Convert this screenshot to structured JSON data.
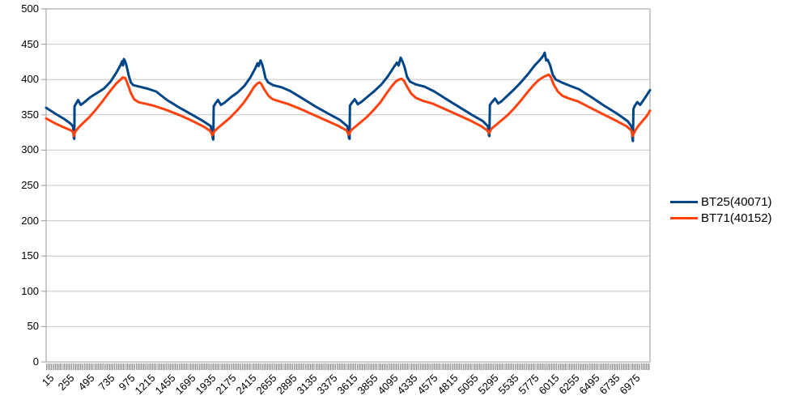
{
  "chart_data": {
    "type": "line",
    "title": "",
    "grid": "horizontal",
    "legend_position": "right",
    "x_axis": {
      "min": 15,
      "max": 7185,
      "minor_tick_step": 15,
      "tick_labels": [
        15,
        255,
        495,
        735,
        975,
        1215,
        1455,
        1695,
        1935,
        2175,
        2415,
        2655,
        2895,
        3135,
        3375,
        3615,
        3855,
        4095,
        4335,
        4575,
        4815,
        5055,
        5295,
        5535,
        5775,
        6015,
        6255,
        6495,
        6735,
        6975
      ]
    },
    "y_axis": {
      "min": 0,
      "max": 500,
      "tick_step": 50,
      "tick_labels": [
        0,
        50,
        100,
        150,
        200,
        250,
        300,
        350,
        400,
        450,
        500
      ]
    },
    "series": [
      {
        "name": "BT25(40071)",
        "color": "#004586",
        "points": [
          [
            15,
            360
          ],
          [
            120,
            352
          ],
          [
            230,
            344
          ],
          [
            310,
            337
          ],
          [
            335,
            333
          ],
          [
            345,
            317
          ],
          [
            349,
            316
          ],
          [
            352,
            362
          ],
          [
            372,
            366
          ],
          [
            395,
            371
          ],
          [
            425,
            364
          ],
          [
            460,
            367
          ],
          [
            540,
            375
          ],
          [
            620,
            381
          ],
          [
            700,
            387
          ],
          [
            780,
            397
          ],
          [
            850,
            410
          ],
          [
            900,
            421
          ],
          [
            918,
            426
          ],
          [
            928,
            420
          ],
          [
            938,
            429
          ],
          [
            952,
            426
          ],
          [
            970,
            419
          ],
          [
            995,
            406
          ],
          [
            1020,
            396
          ],
          [
            1050,
            392
          ],
          [
            1120,
            390
          ],
          [
            1220,
            387
          ],
          [
            1320,
            383
          ],
          [
            1450,
            371
          ],
          [
            1600,
            360
          ],
          [
            1750,
            350
          ],
          [
            1880,
            341
          ],
          [
            1970,
            334
          ],
          [
            1995,
            316
          ],
          [
            2000,
            315
          ],
          [
            2005,
            362
          ],
          [
            2025,
            366
          ],
          [
            2055,
            371
          ],
          [
            2090,
            364
          ],
          [
            2130,
            367
          ],
          [
            2210,
            375
          ],
          [
            2290,
            382
          ],
          [
            2370,
            391
          ],
          [
            2440,
            403
          ],
          [
            2495,
            415
          ],
          [
            2525,
            423
          ],
          [
            2538,
            419
          ],
          [
            2560,
            427
          ],
          [
            2575,
            423
          ],
          [
            2595,
            415
          ],
          [
            2620,
            402
          ],
          [
            2650,
            396
          ],
          [
            2710,
            392
          ],
          [
            2810,
            389
          ],
          [
            2910,
            384
          ],
          [
            3060,
            373
          ],
          [
            3210,
            362
          ],
          [
            3360,
            352
          ],
          [
            3500,
            343
          ],
          [
            3590,
            334
          ],
          [
            3612,
            317
          ],
          [
            3618,
            316
          ],
          [
            3622,
            363
          ],
          [
            3645,
            367
          ],
          [
            3680,
            372
          ],
          [
            3715,
            365
          ],
          [
            3755,
            368
          ],
          [
            3835,
            376
          ],
          [
            3915,
            384
          ],
          [
            3995,
            393
          ],
          [
            4070,
            404
          ],
          [
            4135,
            416
          ],
          [
            4180,
            424
          ],
          [
            4200,
            420
          ],
          [
            4225,
            431
          ],
          [
            4245,
            426
          ],
          [
            4270,
            418
          ],
          [
            4300,
            404
          ],
          [
            4335,
            397
          ],
          [
            4405,
            393
          ],
          [
            4505,
            390
          ],
          [
            4625,
            383
          ],
          [
            4770,
            372
          ],
          [
            4920,
            361
          ],
          [
            5070,
            350
          ],
          [
            5200,
            341
          ],
          [
            5260,
            334
          ],
          [
            5272,
            321
          ],
          [
            5278,
            320
          ],
          [
            5284,
            364
          ],
          [
            5308,
            368
          ],
          [
            5345,
            373
          ],
          [
            5382,
            366
          ],
          [
            5420,
            369
          ],
          [
            5500,
            378
          ],
          [
            5580,
            387
          ],
          [
            5660,
            397
          ],
          [
            5745,
            409
          ],
          [
            5815,
            420
          ],
          [
            5880,
            428
          ],
          [
            5912,
            433
          ],
          [
            5935,
            438
          ],
          [
            5952,
            427
          ],
          [
            5970,
            428
          ],
          [
            6000,
            420
          ],
          [
            6030,
            407
          ],
          [
            6065,
            400
          ],
          [
            6135,
            396
          ],
          [
            6235,
            391
          ],
          [
            6345,
            386
          ],
          [
            6490,
            375
          ],
          [
            6640,
            363
          ],
          [
            6790,
            352
          ],
          [
            6920,
            341
          ],
          [
            6968,
            333
          ],
          [
            6978,
            314
          ],
          [
            6982,
            313
          ],
          [
            6988,
            358
          ],
          [
            7005,
            363
          ],
          [
            7035,
            368
          ],
          [
            7068,
            364
          ],
          [
            7120,
            373
          ],
          [
            7185,
            385
          ]
        ]
      },
      {
        "name": "BT71(40152)",
        "color": "#FF420E",
        "points": [
          [
            15,
            345
          ],
          [
            120,
            338
          ],
          [
            230,
            332
          ],
          [
            310,
            328
          ],
          [
            332,
            326
          ],
          [
            343,
            320
          ],
          [
            360,
            326
          ],
          [
            400,
            332
          ],
          [
            450,
            338
          ],
          [
            530,
            347
          ],
          [
            610,
            358
          ],
          [
            690,
            370
          ],
          [
            770,
            383
          ],
          [
            845,
            394
          ],
          [
            890,
            399
          ],
          [
            925,
            403
          ],
          [
            955,
            402
          ],
          [
            985,
            393
          ],
          [
            1020,
            381
          ],
          [
            1060,
            372
          ],
          [
            1110,
            368
          ],
          [
            1180,
            366
          ],
          [
            1290,
            363
          ],
          [
            1440,
            357
          ],
          [
            1590,
            350
          ],
          [
            1740,
            342
          ],
          [
            1890,
            333
          ],
          [
            1965,
            327
          ],
          [
            1988,
            321
          ],
          [
            2015,
            327
          ],
          [
            2060,
            332
          ],
          [
            2120,
            338
          ],
          [
            2200,
            346
          ],
          [
            2280,
            356
          ],
          [
            2360,
            367
          ],
          [
            2430,
            379
          ],
          [
            2480,
            389
          ],
          [
            2520,
            394
          ],
          [
            2548,
            396
          ],
          [
            2570,
            394
          ],
          [
            2605,
            386
          ],
          [
            2655,
            377
          ],
          [
            2705,
            372
          ],
          [
            2785,
            369
          ],
          [
            2895,
            365
          ],
          [
            3040,
            358
          ],
          [
            3190,
            350
          ],
          [
            3340,
            342
          ],
          [
            3490,
            334
          ],
          [
            3580,
            328
          ],
          [
            3608,
            322
          ],
          [
            3635,
            328
          ],
          [
            3685,
            333
          ],
          [
            3745,
            339
          ],
          [
            3825,
            347
          ],
          [
            3905,
            357
          ],
          [
            3985,
            368
          ],
          [
            4055,
            380
          ],
          [
            4115,
            390
          ],
          [
            4165,
            397
          ],
          [
            4205,
            400
          ],
          [
            4235,
            401
          ],
          [
            4265,
            398
          ],
          [
            4300,
            390
          ],
          [
            4350,
            380
          ],
          [
            4405,
            374
          ],
          [
            4485,
            370
          ],
          [
            4600,
            366
          ],
          [
            4750,
            358
          ],
          [
            4900,
            350
          ],
          [
            5050,
            342
          ],
          [
            5180,
            334
          ],
          [
            5252,
            328
          ],
          [
            5272,
            324
          ],
          [
            5300,
            330
          ],
          [
            5350,
            335
          ],
          [
            5410,
            341
          ],
          [
            5490,
            349
          ],
          [
            5570,
            359
          ],
          [
            5650,
            370
          ],
          [
            5730,
            382
          ],
          [
            5802,
            392
          ],
          [
            5862,
            399
          ],
          [
            5925,
            404
          ],
          [
            5985,
            407
          ],
          [
            6010,
            403
          ],
          [
            6040,
            393
          ],
          [
            6090,
            383
          ],
          [
            6145,
            377
          ],
          [
            6225,
            373
          ],
          [
            6330,
            369
          ],
          [
            6460,
            361
          ],
          [
            6610,
            352
          ],
          [
            6760,
            343
          ],
          [
            6905,
            334
          ],
          [
            6962,
            328
          ],
          [
            6980,
            320
          ],
          [
            7005,
            327
          ],
          [
            7045,
            334
          ],
          [
            7095,
            341
          ],
          [
            7145,
            348
          ],
          [
            7185,
            356
          ]
        ]
      }
    ]
  },
  "colors": {
    "background": "#ffffff",
    "gridline": "#c6c6c6",
    "axis_frame": "#9a9a9a",
    "tick": "#9a9a9a",
    "text": "#000000"
  }
}
